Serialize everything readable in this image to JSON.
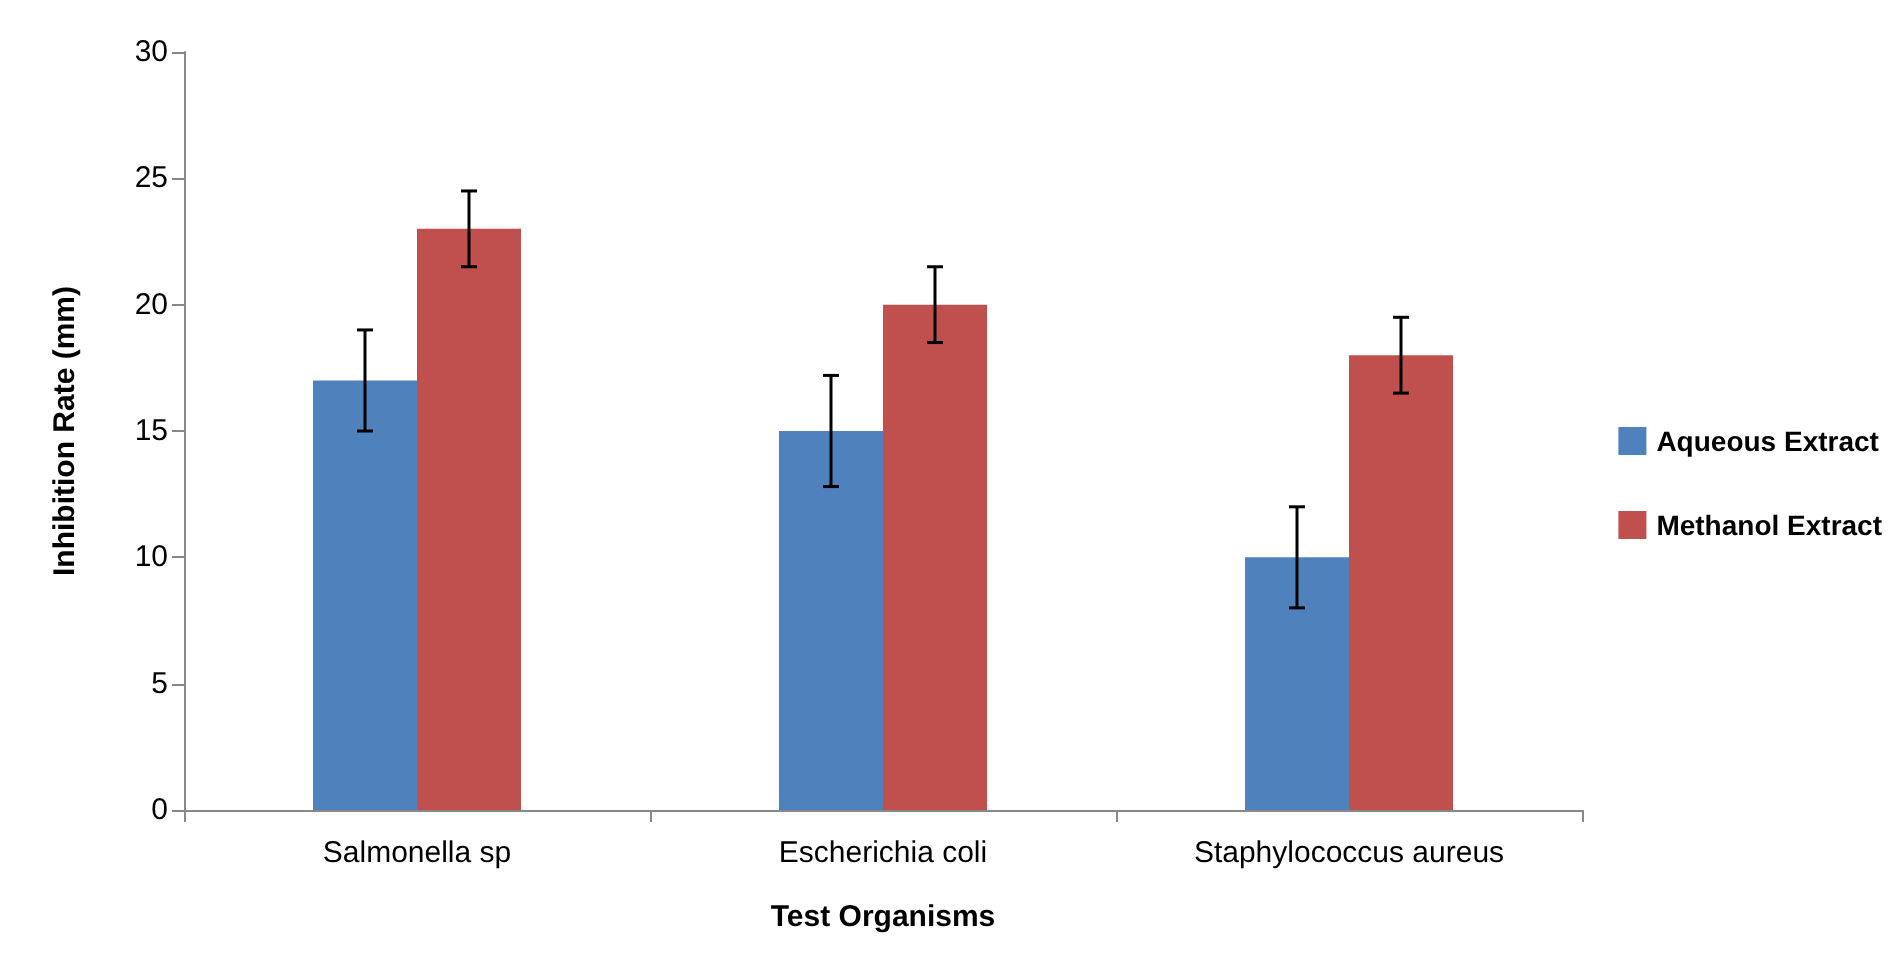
{
  "chart_data": {
    "type": "bar",
    "xlabel": "Test Organisms",
    "ylabel": "Inhibition Rate (mm)",
    "categories": [
      "Salmonella sp",
      "Escherichia coli",
      "Staphylococcus aureus"
    ],
    "series": [
      {
        "name": "Aqueous Extract",
        "color": "#4f81bd",
        "values": [
          17,
          15,
          10
        ],
        "errors": [
          2,
          2.2,
          2
        ]
      },
      {
        "name": "Methanol Extract",
        "color": "#c0504d",
        "values": [
          23,
          20,
          18
        ],
        "errors": [
          1.5,
          1.5,
          1.5
        ]
      }
    ],
    "ylim": [
      0,
      30
    ],
    "yticks": [
      0,
      5,
      10,
      15,
      20,
      25,
      30
    ],
    "grid": false,
    "legend": "right"
  }
}
